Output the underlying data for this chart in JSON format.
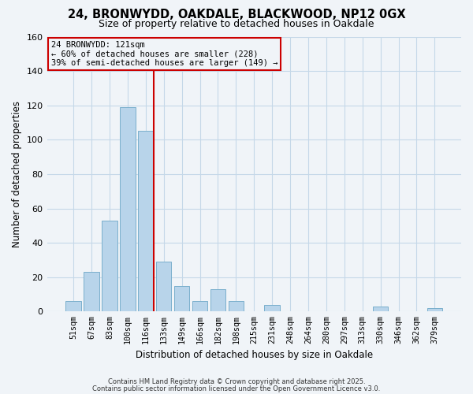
{
  "title": "24, BRONWYDD, OAKDALE, BLACKWOOD, NP12 0GX",
  "subtitle": "Size of property relative to detached houses in Oakdale",
  "bar_labels": [
    "51sqm",
    "67sqm",
    "83sqm",
    "100sqm",
    "116sqm",
    "133sqm",
    "149sqm",
    "166sqm",
    "182sqm",
    "198sqm",
    "215sqm",
    "231sqm",
    "248sqm",
    "264sqm",
    "280sqm",
    "297sqm",
    "313sqm",
    "330sqm",
    "346sqm",
    "362sqm",
    "379sqm"
  ],
  "bar_values": [
    6,
    23,
    53,
    119,
    105,
    29,
    15,
    6,
    13,
    6,
    0,
    4,
    0,
    0,
    0,
    0,
    0,
    3,
    0,
    0,
    2
  ],
  "bar_color": "#b8d4ea",
  "bar_edgecolor": "#7aafcc",
  "property_line_index": 4,
  "property_line_color": "#cc0000",
  "ylim": [
    0,
    160
  ],
  "yticks": [
    0,
    20,
    40,
    60,
    80,
    100,
    120,
    140,
    160
  ],
  "ylabel": "Number of detached properties",
  "xlabel": "Distribution of detached houses by size in Oakdale",
  "annotation_title": "24 BRONWYDD: 121sqm",
  "annotation_line1": "← 60% of detached houses are smaller (228)",
  "annotation_line2": "39% of semi-detached houses are larger (149) →",
  "annotation_box_edgecolor": "#cc0000",
  "footer_line1": "Contains HM Land Registry data © Crown copyright and database right 2025.",
  "footer_line2": "Contains public sector information licensed under the Open Government Licence v3.0.",
  "bg_color": "#f0f4f8",
  "grid_color": "#c5d8e8"
}
